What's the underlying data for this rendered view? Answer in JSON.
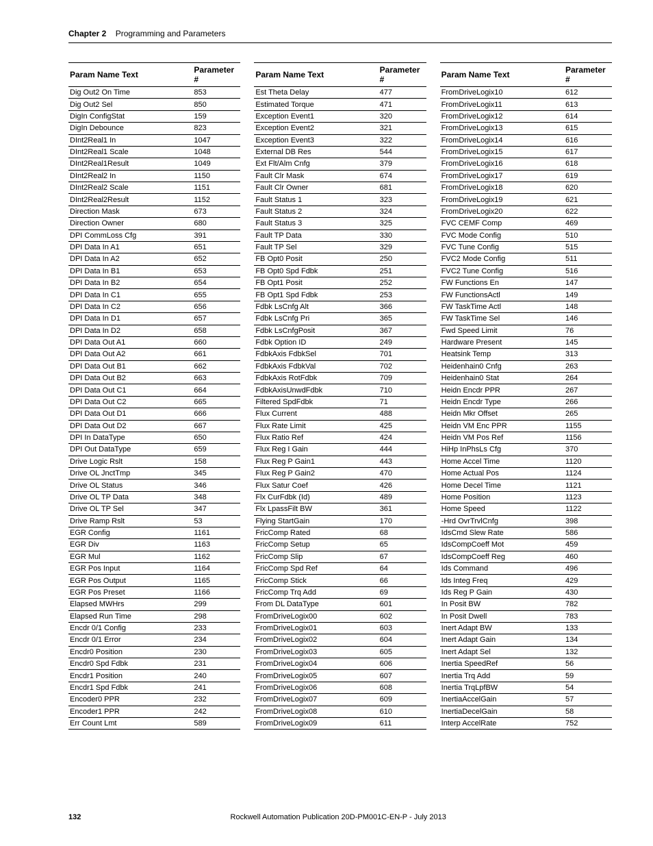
{
  "header": {
    "chapter_label": "Chapter 2",
    "chapter_title": "Programming and Parameters"
  },
  "columns": {
    "name_header": "Param Name Text",
    "num_header": "Parameter #"
  },
  "tables": [
    {
      "rows": [
        {
          "name": "Dig Out2 On Time",
          "num": "853"
        },
        {
          "name": "Dig Out2 Sel",
          "num": "850"
        },
        {
          "name": "DigIn ConfigStat",
          "num": "159"
        },
        {
          "name": "DigIn Debounce",
          "num": "823"
        },
        {
          "name": "DInt2Real1 In",
          "num": "1047"
        },
        {
          "name": "DInt2Real1 Scale",
          "num": "1048"
        },
        {
          "name": "DInt2Real1Result",
          "num": "1049"
        },
        {
          "name": "DInt2Real2 In",
          "num": "1150"
        },
        {
          "name": "DInt2Real2 Scale",
          "num": "1151"
        },
        {
          "name": "DInt2Real2Result",
          "num": "1152"
        },
        {
          "name": "Direction Mask",
          "num": "673"
        },
        {
          "name": "Direction Owner",
          "num": "680"
        },
        {
          "name": "DPI CommLoss Cfg",
          "num": "391"
        },
        {
          "name": "DPI Data In A1",
          "num": "651"
        },
        {
          "name": "DPI Data In A2",
          "num": "652"
        },
        {
          "name": "DPI Data In B1",
          "num": "653"
        },
        {
          "name": "DPI Data In B2",
          "num": "654"
        },
        {
          "name": "DPI Data In C1",
          "num": "655"
        },
        {
          "name": "DPI Data In C2",
          "num": "656"
        },
        {
          "name": "DPI Data In D1",
          "num": "657"
        },
        {
          "name": "DPI Data In D2",
          "num": "658"
        },
        {
          "name": "DPI Data Out A1",
          "num": "660"
        },
        {
          "name": "DPI Data Out A2",
          "num": "661"
        },
        {
          "name": "DPI Data Out B1",
          "num": "662"
        },
        {
          "name": "DPI Data Out B2",
          "num": "663"
        },
        {
          "name": "DPI Data Out C1",
          "num": "664"
        },
        {
          "name": "DPI Data Out C2",
          "num": "665"
        },
        {
          "name": "DPI Data Out D1",
          "num": "666"
        },
        {
          "name": "DPI Data Out D2",
          "num": "667"
        },
        {
          "name": "DPI In DataType",
          "num": "650"
        },
        {
          "name": "DPI Out DataType",
          "num": "659"
        },
        {
          "name": "Drive Logic Rslt",
          "num": "158"
        },
        {
          "name": "Drive OL JnctTmp",
          "num": "345"
        },
        {
          "name": "Drive OL Status",
          "num": "346"
        },
        {
          "name": "Drive OL TP Data",
          "num": "348"
        },
        {
          "name": "Drive OL TP Sel",
          "num": "347"
        },
        {
          "name": "Drive Ramp Rslt",
          "num": "53"
        },
        {
          "name": "EGR Config",
          "num": "1161"
        },
        {
          "name": "EGR Div",
          "num": "1163"
        },
        {
          "name": "EGR Mul",
          "num": "1162"
        },
        {
          "name": "EGR Pos Input",
          "num": "1164"
        },
        {
          "name": "EGR Pos Output",
          "num": "1165"
        },
        {
          "name": "EGR Pos Preset",
          "num": "1166"
        },
        {
          "name": "Elapsed MWHrs",
          "num": "299"
        },
        {
          "name": "Elapsed Run Time",
          "num": "298"
        },
        {
          "name": "Encdr 0/1 Config",
          "num": "233"
        },
        {
          "name": "Encdr 0/1 Error",
          "num": "234"
        },
        {
          "name": "Encdr0 Position",
          "num": "230"
        },
        {
          "name": "Encdr0 Spd Fdbk",
          "num": "231"
        },
        {
          "name": "Encdr1 Position",
          "num": "240"
        },
        {
          "name": "Encdr1 Spd Fdbk",
          "num": "241"
        },
        {
          "name": "Encoder0 PPR",
          "num": "232"
        },
        {
          "name": "Encoder1 PPR",
          "num": "242"
        },
        {
          "name": "Err Count Lmt",
          "num": "589"
        }
      ]
    },
    {
      "rows": [
        {
          "name": "Est Theta Delay",
          "num": "477"
        },
        {
          "name": "Estimated Torque",
          "num": "471"
        },
        {
          "name": "Exception Event1",
          "num": "320"
        },
        {
          "name": "Exception Event2",
          "num": "321"
        },
        {
          "name": "Exception Event3",
          "num": "322"
        },
        {
          "name": "External DB Res",
          "num": "544"
        },
        {
          "name": "Ext Flt/Alm Cnfg",
          "num": "379"
        },
        {
          "name": "Fault Clr Mask",
          "num": "674"
        },
        {
          "name": "Fault Clr Owner",
          "num": "681"
        },
        {
          "name": "Fault Status 1",
          "num": "323"
        },
        {
          "name": "Fault Status 2",
          "num": "324"
        },
        {
          "name": "Fault Status 3",
          "num": "325"
        },
        {
          "name": "Fault TP Data",
          "num": "330"
        },
        {
          "name": "Fault TP Sel",
          "num": "329"
        },
        {
          "name": "FB Opt0 Posit",
          "num": "250"
        },
        {
          "name": "FB Opt0 Spd Fdbk",
          "num": "251"
        },
        {
          "name": "FB Opt1 Posit",
          "num": "252"
        },
        {
          "name": "FB Opt1 Spd Fdbk",
          "num": "253"
        },
        {
          "name": "Fdbk LsCnfg Alt",
          "num": "366"
        },
        {
          "name": "Fdbk LsCnfg Pri",
          "num": "365"
        },
        {
          "name": "Fdbk LsCnfgPosit",
          "num": "367"
        },
        {
          "name": "Fdbk Option ID",
          "num": "249"
        },
        {
          "name": "FdbkAxis FdbkSel",
          "num": "701"
        },
        {
          "name": "FdbkAxis FdbkVal",
          "num": "702"
        },
        {
          "name": "FdbkAxis RotFdbk",
          "num": "709"
        },
        {
          "name": "FdbkAxisUnwdFdbk",
          "num": "710"
        },
        {
          "name": "Filtered SpdFdbk",
          "num": "71"
        },
        {
          "name": "Flux Current",
          "num": "488"
        },
        {
          "name": "Flux Rate Limit",
          "num": "425"
        },
        {
          "name": "Flux Ratio Ref",
          "num": "424"
        },
        {
          "name": "Flux Reg I Gain",
          "num": "444"
        },
        {
          "name": "Flux Reg P Gain1",
          "num": "443"
        },
        {
          "name": "Flux Reg P Gain2",
          "num": "470"
        },
        {
          "name": "Flux Satur Coef",
          "num": "426"
        },
        {
          "name": "Flx CurFdbk (Id)",
          "num": "489"
        },
        {
          "name": "Flx LpassFilt BW",
          "num": "361"
        },
        {
          "name": "Flying StartGain",
          "num": "170"
        },
        {
          "name": "FricComp Rated",
          "num": "68"
        },
        {
          "name": "FricComp Setup",
          "num": "65"
        },
        {
          "name": "FricComp Slip",
          "num": "67"
        },
        {
          "name": "FricComp Spd Ref",
          "num": "64"
        },
        {
          "name": "FricComp Stick",
          "num": "66"
        },
        {
          "name": "FricComp Trq Add",
          "num": "69"
        },
        {
          "name": "From DL DataType",
          "num": "601"
        },
        {
          "name": "FromDriveLogix00",
          "num": "602"
        },
        {
          "name": "FromDriveLogix01",
          "num": "603"
        },
        {
          "name": "FromDriveLogix02",
          "num": "604"
        },
        {
          "name": "FromDriveLogix03",
          "num": "605"
        },
        {
          "name": "FromDriveLogix04",
          "num": "606"
        },
        {
          "name": "FromDriveLogix05",
          "num": "607"
        },
        {
          "name": "FromDriveLogix06",
          "num": "608"
        },
        {
          "name": "FromDriveLogix07",
          "num": "609"
        },
        {
          "name": "FromDriveLogix08",
          "num": "610"
        },
        {
          "name": "FromDriveLogix09",
          "num": "611"
        }
      ]
    },
    {
      "rows": [
        {
          "name": "FromDriveLogix10",
          "num": "612"
        },
        {
          "name": "FromDriveLogix11",
          "num": "613"
        },
        {
          "name": "FromDriveLogix12",
          "num": "614"
        },
        {
          "name": "FromDriveLogix13",
          "num": "615"
        },
        {
          "name": "FromDriveLogix14",
          "num": "616"
        },
        {
          "name": "FromDriveLogix15",
          "num": "617"
        },
        {
          "name": "FromDriveLogix16",
          "num": "618"
        },
        {
          "name": "FromDriveLogix17",
          "num": "619"
        },
        {
          "name": "FromDriveLogix18",
          "num": "620"
        },
        {
          "name": "FromDriveLogix19",
          "num": "621"
        },
        {
          "name": "FromDriveLogix20",
          "num": "622"
        },
        {
          "name": "FVC CEMF Comp",
          "num": "469"
        },
        {
          "name": "FVC Mode Config",
          "num": "510"
        },
        {
          "name": "FVC Tune Config",
          "num": "515"
        },
        {
          "name": "FVC2 Mode Config",
          "num": "511"
        },
        {
          "name": "FVC2 Tune Config",
          "num": "516"
        },
        {
          "name": "FW Functions En",
          "num": "147"
        },
        {
          "name": "FW FunctionsActl",
          "num": "149"
        },
        {
          "name": "FW TaskTime Actl",
          "num": "148"
        },
        {
          "name": "FW TaskTime Sel",
          "num": "146"
        },
        {
          "name": "Fwd Speed Limit",
          "num": "76"
        },
        {
          "name": "Hardware Present",
          "num": "145"
        },
        {
          "name": "Heatsink Temp",
          "num": "313"
        },
        {
          "name": "Heidenhain0 Cnfg",
          "num": "263"
        },
        {
          "name": "Heidenhain0 Stat",
          "num": "264"
        },
        {
          "name": "Heidn Encdr PPR",
          "num": "267"
        },
        {
          "name": "Heidn Encdr Type",
          "num": "266"
        },
        {
          "name": "Heidn Mkr Offset",
          "num": "265"
        },
        {
          "name": "Heidn VM Enc PPR",
          "num": "1155"
        },
        {
          "name": "Heidn VM Pos Ref",
          "num": "1156"
        },
        {
          "name": "HiHp InPhsLs Cfg",
          "num": "370"
        },
        {
          "name": "Home Accel Time",
          "num": "1120"
        },
        {
          "name": "Home Actual Pos",
          "num": "1124"
        },
        {
          "name": "Home Decel Time",
          "num": "1121"
        },
        {
          "name": "Home Position",
          "num": "1123"
        },
        {
          "name": "Home Speed",
          "num": "1122"
        },
        {
          "name": "-Hrd OvrTrvlCnfg",
          "num": "398"
        },
        {
          "name": "IdsCmd Slew Rate",
          "num": "586"
        },
        {
          "name": "IdsCompCoeff Mot",
          "num": "459"
        },
        {
          "name": "IdsCompCoeff Reg",
          "num": "460"
        },
        {
          "name": "Ids Command",
          "num": "496"
        },
        {
          "name": "Ids Integ Freq",
          "num": "429"
        },
        {
          "name": "Ids Reg P Gain",
          "num": "430"
        },
        {
          "name": "In Posit BW",
          "num": "782"
        },
        {
          "name": "In Posit Dwell",
          "num": "783"
        },
        {
          "name": "Inert Adapt BW",
          "num": "133"
        },
        {
          "name": "Inert Adapt Gain",
          "num": "134"
        },
        {
          "name": "Inert Adapt Sel",
          "num": "132"
        },
        {
          "name": "Inertia SpeedRef",
          "num": "56"
        },
        {
          "name": "Inertia Trq Add",
          "num": "59"
        },
        {
          "name": "Inertia TrqLpfBW",
          "num": "54"
        },
        {
          "name": "InertiaAccelGain",
          "num": "57"
        },
        {
          "name": "InertiaDecelGain",
          "num": "58"
        },
        {
          "name": "Interp AccelRate",
          "num": "752"
        }
      ]
    }
  ],
  "footer": {
    "page_number": "132",
    "publication": "Rockwell Automation Publication 20D-PM001C-EN-P - July 2013"
  }
}
